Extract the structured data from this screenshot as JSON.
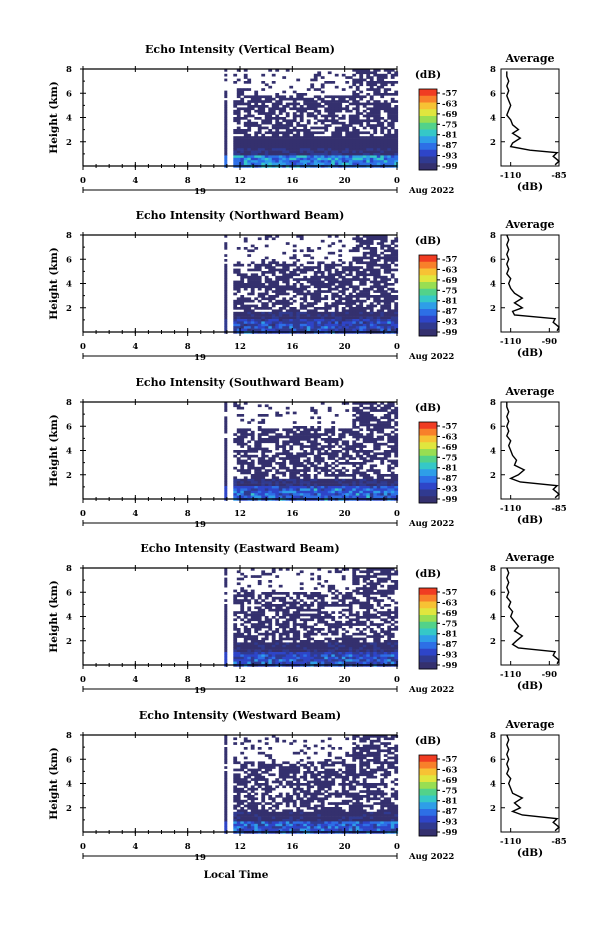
{
  "figure": {
    "xlabel": "Local Time",
    "date_label": "Aug 2022",
    "day_label": "19",
    "unit_label": "(dB)",
    "avg_title": "Average",
    "ylabel": "Height (km)",
    "xticks": [
      "0",
      "4",
      "8",
      "12",
      "16",
      "20",
      "0"
    ],
    "yticks": [
      "2",
      "4",
      "6",
      "8"
    ],
    "colorbar_ticks": [
      "-57",
      "-63",
      "-69",
      "-75",
      "-81",
      "-87",
      "-93",
      "-99"
    ],
    "colorbar_colors": [
      "#f03c22",
      "#f8802a",
      "#f7c234",
      "#e0e63e",
      "#98de52",
      "#52d28a",
      "#35c8c8",
      "#2e9ee8",
      "#2d6fe6",
      "#2e45c8",
      "#303a90",
      "#34306e"
    ]
  },
  "chart_data": [
    {
      "type": "heatmap",
      "title": "Echo Intensity (Vertical Beam)",
      "xlabel": "",
      "ylabel": "Height (km)",
      "xlim": [
        0,
        24
      ],
      "ylim": [
        0,
        8
      ],
      "colorbar": {
        "label": "(dB)",
        "range": [
          -99,
          -57
        ]
      },
      "data_start_hour": 10.8,
      "layers": [
        {
          "height_km": [
            0,
            1.0
          ],
          "value_db": -87
        },
        {
          "height_km": [
            1.0,
            1.6
          ],
          "value_db": -96
        },
        {
          "height_km": [
            1.6,
            2.5
          ],
          "value_db": -99
        },
        {
          "height_km": [
            2.5,
            6.0
          ],
          "value_db": -99,
          "coverage": "patchy"
        },
        {
          "height_km": [
            6.0,
            8.0
          ],
          "value_db": -99,
          "coverage": "sparse"
        }
      ],
      "average": {
        "title": "Average",
        "xlabel": "(dB)",
        "xlim": [
          -115,
          -85
        ],
        "xticks": [
          "-110",
          "-85"
        ],
        "height_km": [
          0.1,
          0.4,
          0.8,
          1.1,
          1.3,
          1.6,
          1.9,
          2.3,
          2.7,
          3.0,
          3.4,
          3.8,
          4.2,
          4.6,
          5.0,
          5.4,
          5.8,
          6.2,
          6.6,
          7.0,
          7.4,
          7.8
        ],
        "value_db": [
          -87,
          -85,
          -88,
          -86,
          -100,
          -110,
          -109,
          -105,
          -109,
          -106,
          -109,
          -110,
          -112,
          -111,
          -110,
          -111,
          -112,
          -111,
          -112,
          -111,
          -112,
          -112
        ]
      }
    },
    {
      "type": "heatmap",
      "title": "Echo Intensity (Northward Beam)",
      "xlabel": "",
      "ylabel": "Height (km)",
      "xlim": [
        0,
        24
      ],
      "ylim": [
        0,
        8
      ],
      "colorbar": {
        "label": "(dB)",
        "range": [
          -99,
          -57
        ]
      },
      "data_start_hour": 10.8,
      "layers": [
        {
          "height_km": [
            0,
            1.2
          ],
          "value_db": -93
        },
        {
          "height_km": [
            1.2,
            1.8
          ],
          "value_db": -97
        },
        {
          "height_km": [
            1.8,
            6.0
          ],
          "value_db": -99,
          "coverage": "patchy"
        },
        {
          "height_km": [
            6.0,
            8.0
          ],
          "value_db": -99,
          "coverage": "sparse"
        }
      ],
      "average": {
        "title": "Average",
        "xlabel": "(dB)",
        "xlim": [
          -115,
          -85
        ],
        "xticks": [
          "-110",
          "-90"
        ],
        "height_km": [
          0.1,
          0.4,
          0.8,
          1.1,
          1.4,
          1.7,
          2.0,
          2.4,
          2.8,
          3.2,
          3.6,
          4.0,
          4.4,
          4.8,
          5.2,
          5.6,
          6.0,
          6.4,
          6.8,
          7.2,
          7.6,
          8.0
        ],
        "value_db": [
          -86,
          -85,
          -88,
          -87,
          -108,
          -109,
          -104,
          -108,
          -104,
          -108,
          -110,
          -111,
          -110,
          -112,
          -111,
          -112,
          -111,
          -112,
          -111,
          -112,
          -111,
          -112
        ]
      }
    },
    {
      "type": "heatmap",
      "title": "Echo Intensity (Southward Beam)",
      "xlabel": "",
      "ylabel": "Height (km)",
      "xlim": [
        0,
        24
      ],
      "ylim": [
        0,
        8
      ],
      "colorbar": {
        "label": "(dB)",
        "range": [
          -99,
          -57
        ]
      },
      "data_start_hour": 10.8,
      "layers": [
        {
          "height_km": [
            0,
            1.1
          ],
          "value_db": -90
        },
        {
          "height_km": [
            1.1,
            1.8
          ],
          "value_db": -96
        },
        {
          "height_km": [
            1.8,
            6.0
          ],
          "value_db": -99,
          "coverage": "patchy"
        },
        {
          "height_km": [
            6.0,
            8.0
          ],
          "value_db": -99,
          "coverage": "sparse"
        }
      ],
      "average": {
        "title": "Average",
        "xlabel": "(dB)",
        "xlim": [
          -115,
          -85
        ],
        "xticks": [
          "-110",
          "-85"
        ],
        "height_km": [
          0.1,
          0.4,
          0.8,
          1.1,
          1.4,
          1.7,
          2.0,
          2.4,
          2.8,
          3.2,
          3.6,
          4.0,
          4.4,
          4.8,
          5.2,
          5.6,
          6.0,
          6.4,
          6.8,
          7.2,
          7.6,
          8.0
        ],
        "value_db": [
          -87,
          -85,
          -88,
          -86,
          -105,
          -110,
          -106,
          -103,
          -108,
          -107,
          -109,
          -110,
          -111,
          -110,
          -112,
          -111,
          -112,
          -111,
          -112,
          -111,
          -112,
          -112
        ]
      }
    },
    {
      "type": "heatmap",
      "title": "Echo Intensity (Eastward Beam)",
      "xlabel": "",
      "ylabel": "Height (km)",
      "xlim": [
        0,
        24
      ],
      "ylim": [
        0,
        8
      ],
      "colorbar": {
        "label": "(dB)",
        "range": [
          -99,
          -57
        ]
      },
      "data_start_hour": 10.8,
      "layers": [
        {
          "height_km": [
            0,
            1.1
          ],
          "value_db": -92
        },
        {
          "height_km": [
            1.1,
            1.9
          ],
          "value_db": -97
        },
        {
          "height_km": [
            1.9,
            6.2
          ],
          "value_db": -99,
          "coverage": "patchy"
        },
        {
          "height_km": [
            6.2,
            8.0
          ],
          "value_db": -99,
          "coverage": "sparse"
        }
      ],
      "average": {
        "title": "Average",
        "xlabel": "(dB)",
        "xlim": [
          -115,
          -85
        ],
        "xticks": [
          "-110",
          "-90"
        ],
        "height_km": [
          0.1,
          0.4,
          0.8,
          1.1,
          1.4,
          1.7,
          2.0,
          2.4,
          2.8,
          3.2,
          3.6,
          4.0,
          4.4,
          4.8,
          5.2,
          5.6,
          6.0,
          6.4,
          6.8,
          7.2,
          7.6,
          8.0
        ],
        "value_db": [
          -86,
          -85,
          -88,
          -87,
          -106,
          -109,
          -107,
          -104,
          -108,
          -106,
          -108,
          -110,
          -109,
          -111,
          -110,
          -112,
          -111,
          -112,
          -111,
          -112,
          -111,
          -112
        ]
      }
    },
    {
      "type": "heatmap",
      "title": "Echo Intensity (Westward Beam)",
      "xlabel": "Local Time",
      "ylabel": "Height (km)",
      "xlim": [
        0,
        24
      ],
      "ylim": [
        0,
        8
      ],
      "colorbar": {
        "label": "(dB)",
        "range": [
          -99,
          -57
        ]
      },
      "data_start_hour": 10.8,
      "layers": [
        {
          "height_km": [
            0,
            1.0
          ],
          "value_db": -91
        },
        {
          "height_km": [
            1.0,
            1.7
          ],
          "value_db": -97
        },
        {
          "height_km": [
            1.7,
            6.0
          ],
          "value_db": -99,
          "coverage": "patchy"
        },
        {
          "height_km": [
            6.0,
            8.0
          ],
          "value_db": -99,
          "coverage": "sparse"
        }
      ],
      "average": {
        "title": "Average",
        "xlabel": "(dB)",
        "xlim": [
          -115,
          -85
        ],
        "xticks": [
          "-110",
          "-85"
        ],
        "height_km": [
          0.1,
          0.4,
          0.8,
          1.1,
          1.4,
          1.7,
          2.0,
          2.4,
          2.8,
          3.2,
          3.6,
          4.0,
          4.4,
          4.8,
          5.2,
          5.6,
          6.0,
          6.4,
          6.8,
          7.2,
          7.6,
          8.0
        ],
        "value_db": [
          -87,
          -85,
          -88,
          -86,
          -104,
          -109,
          -105,
          -108,
          -104,
          -109,
          -110,
          -111,
          -110,
          -112,
          -111,
          -112,
          -111,
          -112,
          -111,
          -112,
          -111,
          -112
        ]
      }
    }
  ]
}
